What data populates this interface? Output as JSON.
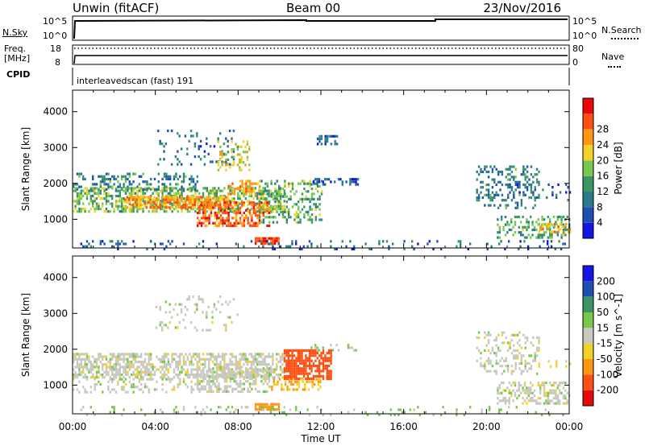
{
  "header": {
    "station": "Unwin (fitACF)",
    "beam": "Beam 00",
    "date": "23/Nov/2016"
  },
  "nsky_panel": {
    "left_label": "N.Sky",
    "left_ticks": [
      "10^5",
      "10^0"
    ],
    "right_label": "N.Search",
    "right_ticks": [
      "10^5",
      "10^0"
    ]
  },
  "freq_panel": {
    "left_label_1": "Freq.",
    "left_label_2": "[MHz]",
    "left_ticks": [
      "18",
      "8"
    ],
    "right_label": "Nave",
    "right_ticks": [
      "80",
      "0"
    ]
  },
  "cpid_panel": {
    "label": "CPID",
    "text": "interleavedscan (fast) 191"
  },
  "colors": {
    "power": [
      "#1414e6",
      "#1e50b4",
      "#2a7a8c",
      "#3c9664",
      "#78c850",
      "#f0d228",
      "#ff9614",
      "#ff5014",
      "#e60a0a"
    ],
    "velocity": [
      "#e60a0a",
      "#ff5014",
      "#ff9614",
      "#f0d228",
      "#c8c8c0",
      "#78c850",
      "#3c9664",
      "#1e50b4",
      "#1414e6"
    ],
    "ground": "#c8c8c0"
  },
  "chart_data": [
    {
      "type": "heatmap",
      "name": "power",
      "ylabel": "Slant Range [km]",
      "yticks": [
        1000,
        2000,
        3000,
        4000
      ],
      "ylim": [
        200,
        4600
      ],
      "xlim": [
        0,
        24
      ],
      "colorbar_label": "Power [dB]",
      "colorbar_ticks": [
        "4",
        "8",
        "12",
        "16",
        "20",
        "24",
        "28"
      ],
      "colorbar_range": [
        0,
        32
      ],
      "regions": [
        {
          "t0": 0.0,
          "t1": 10.2,
          "r0": 1250,
          "r1": 1900,
          "v": 15,
          "d": 0.55
        },
        {
          "t0": 2.5,
          "t1": 7.5,
          "r0": 1350,
          "r1": 1650,
          "v": 23,
          "d": 0.7
        },
        {
          "t0": 6.0,
          "t1": 9.5,
          "r0": 800,
          "r1": 1500,
          "v": 25,
          "d": 0.6
        },
        {
          "t0": 7.5,
          "t1": 9.0,
          "r0": 1700,
          "r1": 2100,
          "v": 22,
          "d": 0.5
        },
        {
          "t0": 0.0,
          "t1": 6.0,
          "r0": 1800,
          "r1": 2300,
          "v": 10,
          "d": 0.3
        },
        {
          "t0": 4.0,
          "t1": 8.0,
          "r0": 2500,
          "r1": 3500,
          "v": 8,
          "d": 0.12
        },
        {
          "t0": 7.0,
          "t1": 8.5,
          "r0": 2400,
          "r1": 3200,
          "v": 18,
          "d": 0.25
        },
        {
          "t0": 9.0,
          "t1": 12.0,
          "r0": 900,
          "r1": 2100,
          "v": 14,
          "d": 0.35
        },
        {
          "t0": 11.5,
          "t1": 13.8,
          "r0": 1950,
          "r1": 2150,
          "v": 6,
          "d": 0.4
        },
        {
          "t0": 11.8,
          "t1": 12.8,
          "r0": 3100,
          "r1": 3350,
          "v": 6,
          "d": 0.4
        },
        {
          "t0": 8.8,
          "t1": 10.0,
          "r0": 300,
          "r1": 500,
          "v": 28,
          "d": 0.8
        },
        {
          "t0": 0.0,
          "t1": 24.0,
          "r0": 200,
          "r1": 420,
          "v": 7,
          "d": 0.12
        },
        {
          "t0": 19.5,
          "t1": 22.5,
          "r0": 1300,
          "r1": 2500,
          "v": 10,
          "d": 0.28
        },
        {
          "t0": 20.5,
          "t1": 24.0,
          "r0": 500,
          "r1": 1100,
          "v": 13,
          "d": 0.42
        },
        {
          "t0": 22.5,
          "t1": 24.0,
          "r0": 650,
          "r1": 900,
          "v": 22,
          "d": 0.5
        },
        {
          "t0": 21.0,
          "t1": 24.0,
          "r0": 1500,
          "r1": 2000,
          "v": 7,
          "d": 0.18
        }
      ]
    },
    {
      "type": "heatmap",
      "name": "velocity",
      "ylabel": "Slant Range [km]",
      "yticks": [
        1000,
        2000,
        3000,
        4000
      ],
      "ylim": [
        200,
        4600
      ],
      "xlim": [
        0,
        24
      ],
      "xlabel": "Time UT",
      "xticks": [
        "00:00",
        "04:00",
        "08:00",
        "12:00",
        "16:00",
        "20:00",
        "00:00"
      ],
      "colorbar_label": "Velocity [m s^-1]",
      "colorbar_ticks": [
        "-200",
        "-100",
        "-50",
        "-15",
        "15",
        "50",
        "100",
        "200"
      ],
      "regions": [
        {
          "t0": 0.0,
          "t1": 10.2,
          "r0": 1250,
          "r1": 1900,
          "v": 0,
          "d": 0.6
        },
        {
          "t0": 6.0,
          "t1": 9.5,
          "r0": 800,
          "r1": 1500,
          "v": 0,
          "d": 0.55
        },
        {
          "t0": 0.0,
          "t1": 6.0,
          "r0": 800,
          "r1": 1200,
          "v": 0,
          "d": 0.25
        },
        {
          "t0": 4.0,
          "t1": 8.0,
          "r0": 2500,
          "r1": 3500,
          "v": 0,
          "d": 0.12
        },
        {
          "t0": 10.2,
          "t1": 12.5,
          "r0": 1200,
          "r1": 2000,
          "v": -150,
          "d": 0.75
        },
        {
          "t0": 9.5,
          "t1": 12.0,
          "r0": 900,
          "r1": 1200,
          "v": -50,
          "d": 0.3
        },
        {
          "t0": 11.5,
          "t1": 13.8,
          "r0": 1950,
          "r1": 2150,
          "v": 10,
          "d": 0.25
        },
        {
          "t0": 8.8,
          "t1": 10.0,
          "r0": 300,
          "r1": 500,
          "v": -70,
          "d": 0.85
        },
        {
          "t0": 0.0,
          "t1": 24.0,
          "r0": 200,
          "r1": 420,
          "v": 20,
          "d": 0.1
        },
        {
          "t0": 19.5,
          "t1": 22.5,
          "r0": 1300,
          "r1": 2500,
          "v": 0,
          "d": 0.3
        },
        {
          "t0": 20.5,
          "t1": 24.0,
          "r0": 500,
          "r1": 1100,
          "v": 0,
          "d": 0.45
        },
        {
          "t0": 22.5,
          "t1": 24.0,
          "r0": 1500,
          "r1": 1700,
          "v": -30,
          "d": 0.2
        }
      ]
    }
  ]
}
